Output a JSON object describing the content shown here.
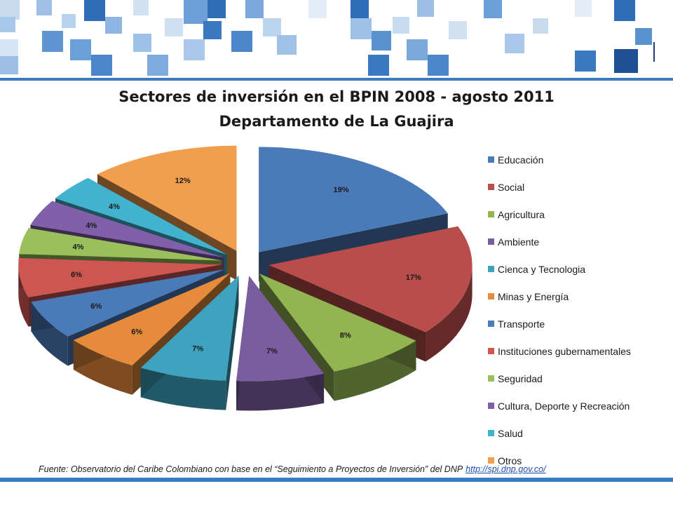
{
  "header": {
    "title_line1": "Sectores de inversión en el  BPIN 2008 -  agosto 2011",
    "title_line2": "Departamento de La Guajira"
  },
  "colors": {
    "accent": "#3a7cc4"
  },
  "chart_data": {
    "type": "pie",
    "title": "",
    "legend_position": "right",
    "categories": [
      "Educación",
      "Social",
      "Agricultura",
      "Ambiente",
      "Cienca y Tecnologia",
      "Minas y Energía",
      "Transporte",
      "Instituciones gubernamentales",
      "Seguridad",
      "Cultura, Deporte y Recreación",
      "Salud",
      "Otros"
    ],
    "values": [
      19,
      17,
      8,
      7,
      7,
      6,
      6,
      6,
      4,
      4,
      4,
      12
    ],
    "labels": [
      "19%",
      "17%",
      "8%",
      "7%",
      "7%",
      "6%",
      "6%",
      "6%",
      "4%",
      "4%",
      "4%",
      "12%"
    ],
    "colors": [
      "#4a7ab8",
      "#b94d4b",
      "#92b552",
      "#7a5d9f",
      "#3ea3be",
      "#e68b3c",
      "#4a7ab8",
      "#cd5552",
      "#99c05b",
      "#8060a8",
      "#42b3cf",
      "#f29e4f"
    ]
  },
  "footer": {
    "source_text": "Fuente: Observatorio del Caribe Colombiano con base en el “Seguimiento a Proyectos de Inversión” del DNP",
    "link_text": "http://spi.dnp.gov.co/"
  }
}
